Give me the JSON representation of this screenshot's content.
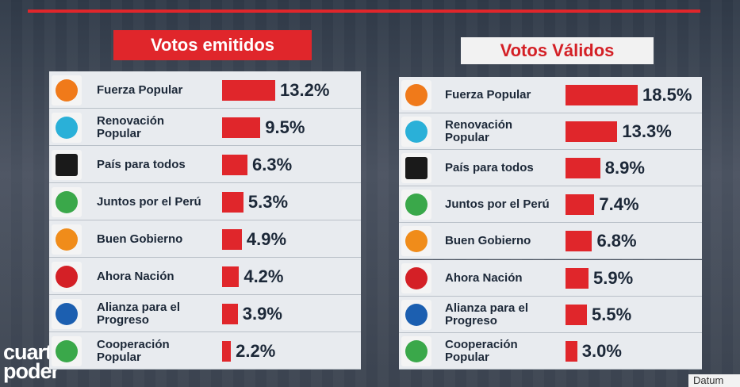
{
  "chart_data": [
    {
      "type": "bar",
      "orientation": "horizontal",
      "title": "Votos emitidos",
      "color": "#e0262b",
      "categories": [
        "Fuerza Popular",
        "Renovación\nPopular",
        "País para todos",
        "Juntos por el Perú",
        "Buen Gobierno",
        "Ahora Nación",
        "Alianza para el\nProgreso",
        "Cooperación\nPopular"
      ],
      "values": [
        13.2,
        9.5,
        6.3,
        5.3,
        4.9,
        4.2,
        3.9,
        2.2
      ],
      "value_labels": [
        "13.2%",
        "9.5%",
        "6.3%",
        "5.3%",
        "4.9%",
        "4.2%",
        "3.9%",
        "2.2%"
      ]
    },
    {
      "type": "bar",
      "orientation": "horizontal",
      "title": "Votos Válidos",
      "color": "#e0262b",
      "categories": [
        "Fuerza Popular",
        "Renovación\nPopular",
        "País para todos",
        "Juntos por el Perú",
        "Buen Gobierno",
        "Ahora Nación",
        "Alianza para el\nProgreso",
        "Cooperación\nPopular"
      ],
      "values": [
        18.5,
        13.3,
        8.9,
        7.4,
        6.8,
        5.9,
        5.5,
        3.0
      ],
      "value_labels": [
        "18.5%",
        "13.3%",
        "8.9%",
        "7.4%",
        "6.8%",
        "5.9%",
        "5.5%",
        "3.0%"
      ]
    }
  ],
  "logo": [
    "cuarto",
    "poder"
  ],
  "source": "Datum"
}
